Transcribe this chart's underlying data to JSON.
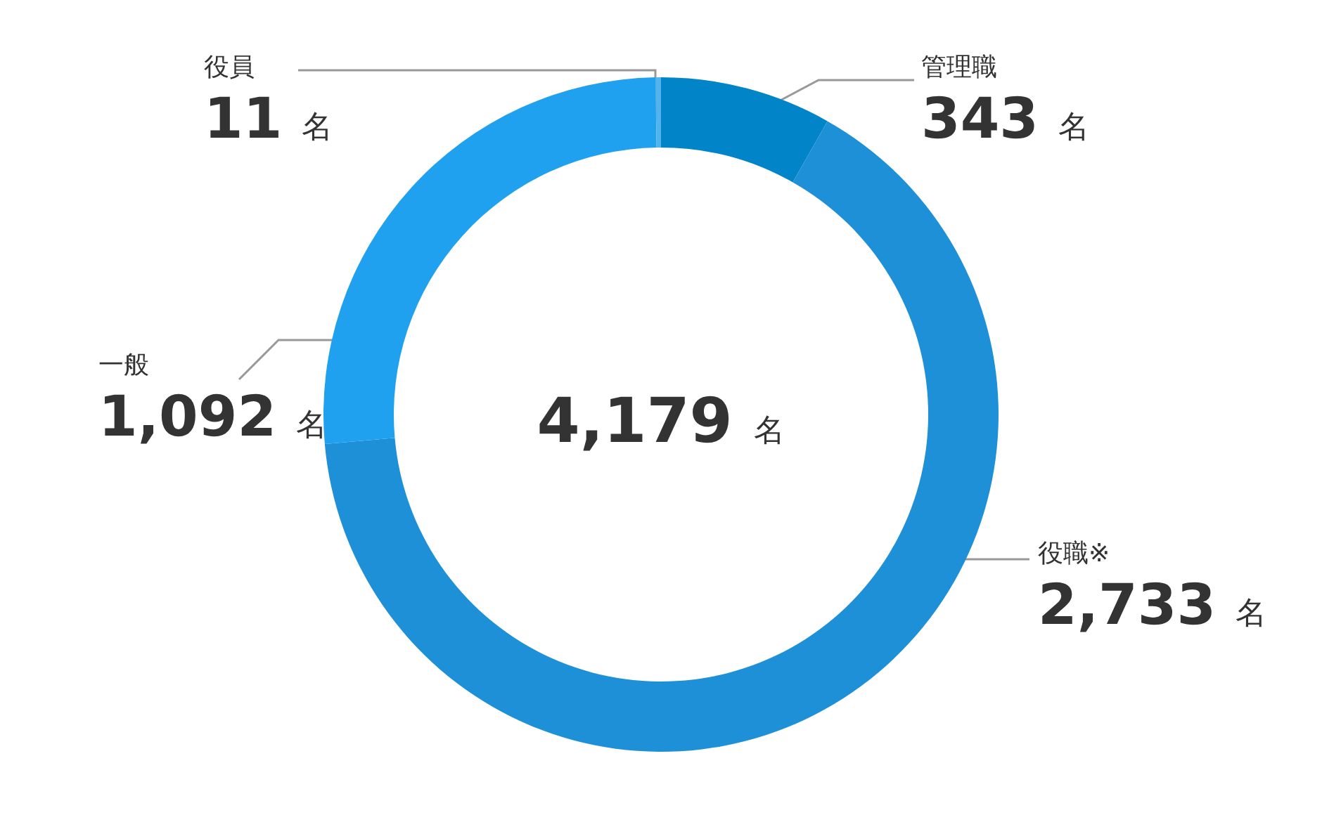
{
  "chart_data": {
    "type": "donut",
    "categories": [
      "管理職",
      "役職※",
      "一般",
      "役員"
    ],
    "values": [
      343,
      2733,
      1092,
      11
    ],
    "colors": [
      "#0284c8",
      "#1e90d8",
      "#1fa1ef",
      "#52b3ef"
    ],
    "value_labels": [
      "343 名",
      "2,733 名",
      "1,092 名",
      "11 名"
    ],
    "annotations": [
      "4,179 名"
    ],
    "legend": false
  }
}
